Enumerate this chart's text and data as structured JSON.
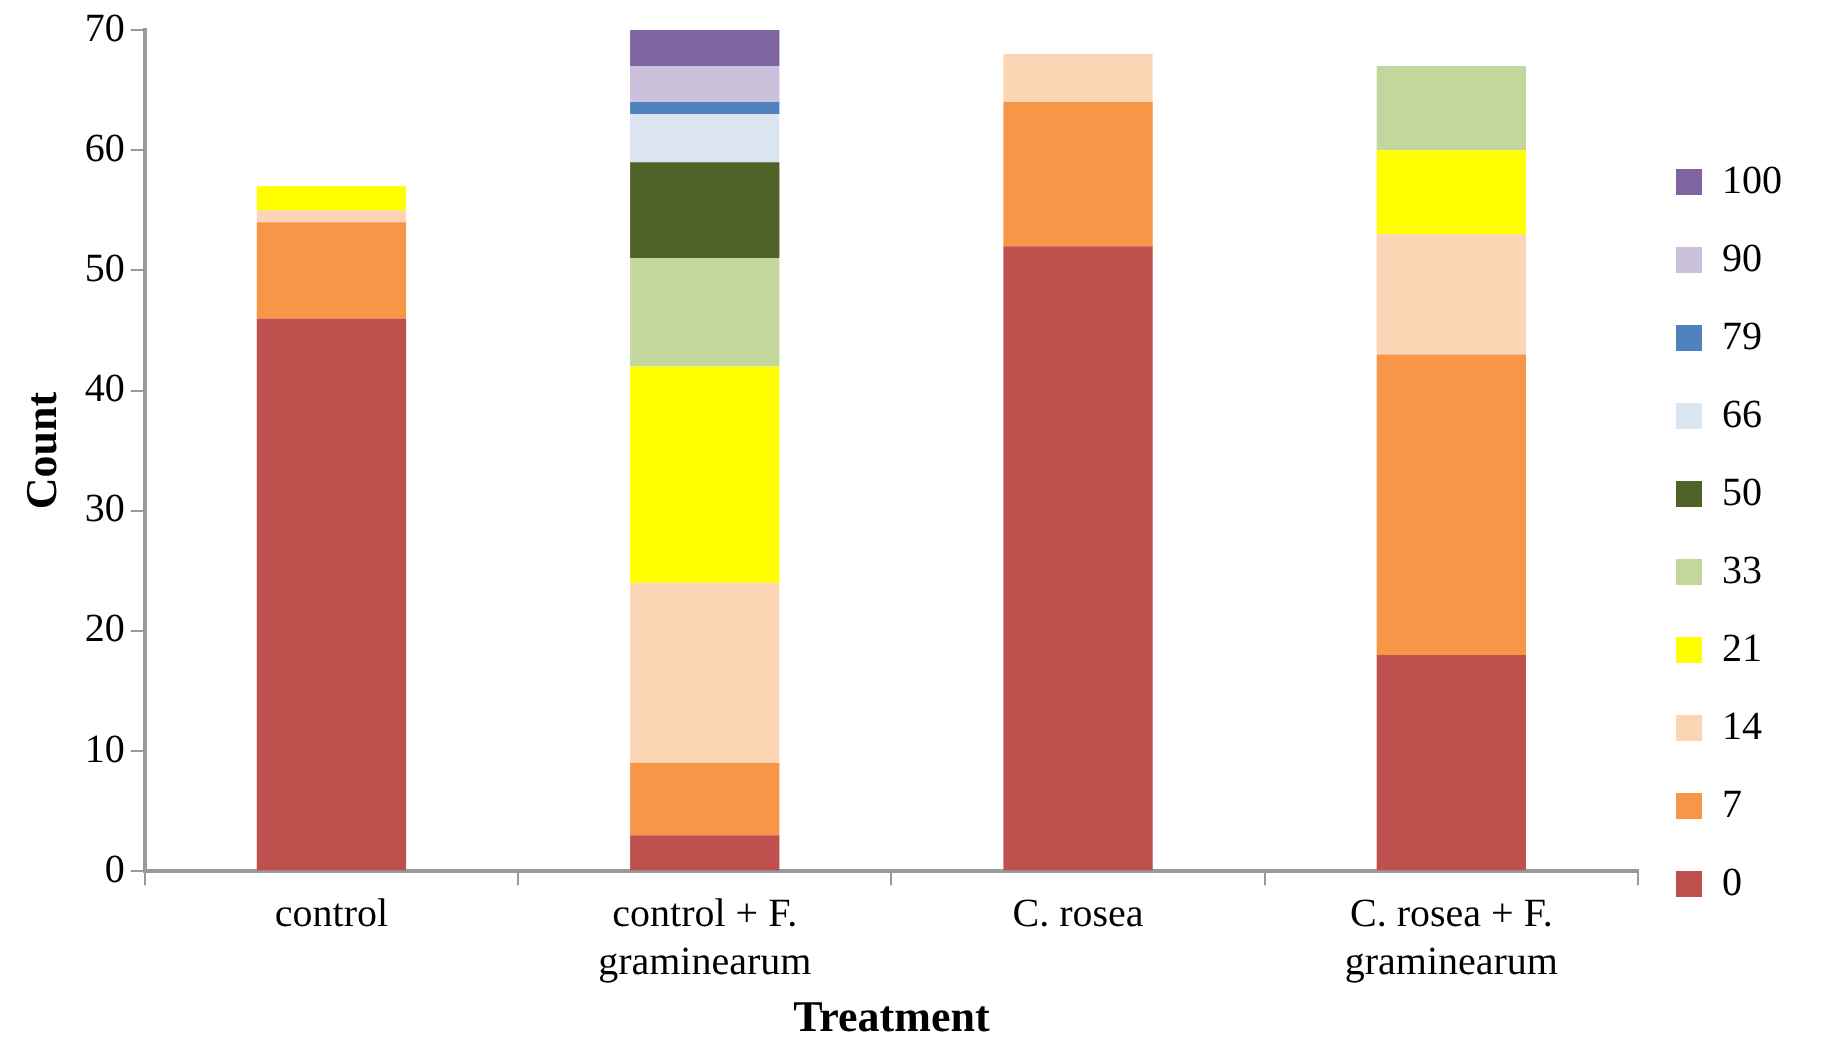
{
  "chart_data": {
    "type": "bar",
    "stacked": true,
    "xlabel": "Treatment",
    "ylabel": "Count",
    "categories": [
      "control",
      "control + F. graminearum",
      "C. rosea",
      "C. rosea + F. graminearum"
    ],
    "ylim": [
      0,
      70
    ],
    "yticks": [
      0,
      10,
      20,
      30,
      40,
      50,
      60,
      70
    ],
    "grid": false,
    "legend": "right",
    "series": [
      {
        "name": "0",
        "color": "#c0504d",
        "values": [
          46,
          3,
          52,
          18
        ]
      },
      {
        "name": "7",
        "color": "#f79646",
        "values": [
          8,
          6,
          12,
          25
        ]
      },
      {
        "name": "14",
        "color": "#fcd5b5",
        "values": [
          1,
          15,
          4,
          10
        ]
      },
      {
        "name": "21",
        "color": "#ffff00",
        "values": [
          2,
          18,
          null,
          7
        ]
      },
      {
        "name": "33",
        "color": "#c3d69b",
        "values": [
          null,
          9,
          null,
          7
        ]
      },
      {
        "name": "50",
        "color": "#4f6228",
        "values": [
          null,
          8,
          null,
          null
        ]
      },
      {
        "name": "66",
        "color": "#dce6f2",
        "values": [
          null,
          4,
          null,
          null
        ]
      },
      {
        "name": "79",
        "color": "#4f81bd",
        "values": [
          null,
          1,
          null,
          null
        ]
      },
      {
        "name": "90",
        "color": "#ccc1da",
        "values": [
          null,
          3,
          null,
          null
        ]
      },
      {
        "name": "100",
        "color": "#8064a2",
        "values": [
          null,
          3,
          null,
          null
        ]
      }
    ]
  }
}
